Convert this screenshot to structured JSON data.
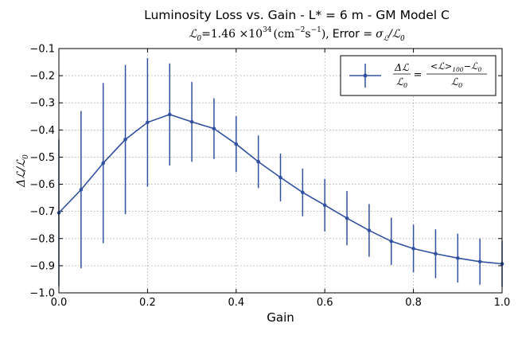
{
  "chart_data": {
    "type": "line",
    "title": "Luminosity Loss vs. Gain - L* = 6 m - GM Model C",
    "subtitle": {
      "lumi_symbol": "ℒ",
      "lumi_sub": "0",
      "lumi_eq": "=1.46 ×10",
      "lumi_exp": "34",
      "lumi_unit": "(cm",
      "unit_exp1": "−2",
      "unit_s": "s",
      "unit_exp2": "−1",
      "unit_close": "),",
      "error_text": "Error =",
      "error_formula": "σ",
      "error_sub": "ℒ",
      "error_slash": "/ℒ",
      "error_sub2": "0"
    },
    "xlabel": "Gain",
    "ylabel": {
      "delta": "Δℒ",
      "slash": "/ℒ",
      "sub": "0"
    },
    "xlim": [
      0.0,
      1.0
    ],
    "ylim": [
      -1.0,
      -0.1
    ],
    "x_ticks": [
      "0.0",
      "0.2",
      "0.4",
      "0.6",
      "0.8",
      "1.0"
    ],
    "y_ticks": [
      "−0.1",
      "−0.2",
      "−0.3",
      "−0.4",
      "−0.5",
      "−0.6",
      "−0.7",
      "−0.8",
      "−0.9",
      "−1.0"
    ],
    "grid": true,
    "legend_position": "top-right",
    "legend": {
      "frac1_num": "Δℒ",
      "frac1_den": "ℒ",
      "frac1_den_sub": "0",
      "equals": "=",
      "frac2_num": "<ℒ>",
      "frac2_num_sub": "100",
      "frac2_num_rest": "−ℒ",
      "frac2_num_rest_sub": "0",
      "frac2_den": "ℒ",
      "frac2_den_sub": "0"
    },
    "color": "#3050a0",
    "series": [
      {
        "x": [
          0.0,
          0.05,
          0.1,
          0.15,
          0.2,
          0.25,
          0.3,
          0.35,
          0.4,
          0.45,
          0.5,
          0.55,
          0.6,
          0.65,
          0.7,
          0.75,
          0.8,
          0.85,
          0.9,
          0.95,
          1.0
        ],
        "y": [
          -0.705,
          -0.62,
          -0.522,
          -0.435,
          -0.372,
          -0.343,
          -0.37,
          -0.395,
          -0.452,
          -0.517,
          -0.575,
          -0.63,
          -0.677,
          -0.725,
          -0.77,
          -0.81,
          -0.837,
          -0.856,
          -0.872,
          -0.885,
          -0.893
        ],
        "err": [
          0.27,
          0.29,
          0.295,
          0.275,
          0.237,
          0.188,
          0.147,
          0.112,
          0.103,
          0.097,
          0.088,
          0.088,
          0.097,
          0.1,
          0.097,
          0.087,
          0.088,
          0.09,
          0.09,
          0.085,
          0.085
        ]
      }
    ]
  }
}
